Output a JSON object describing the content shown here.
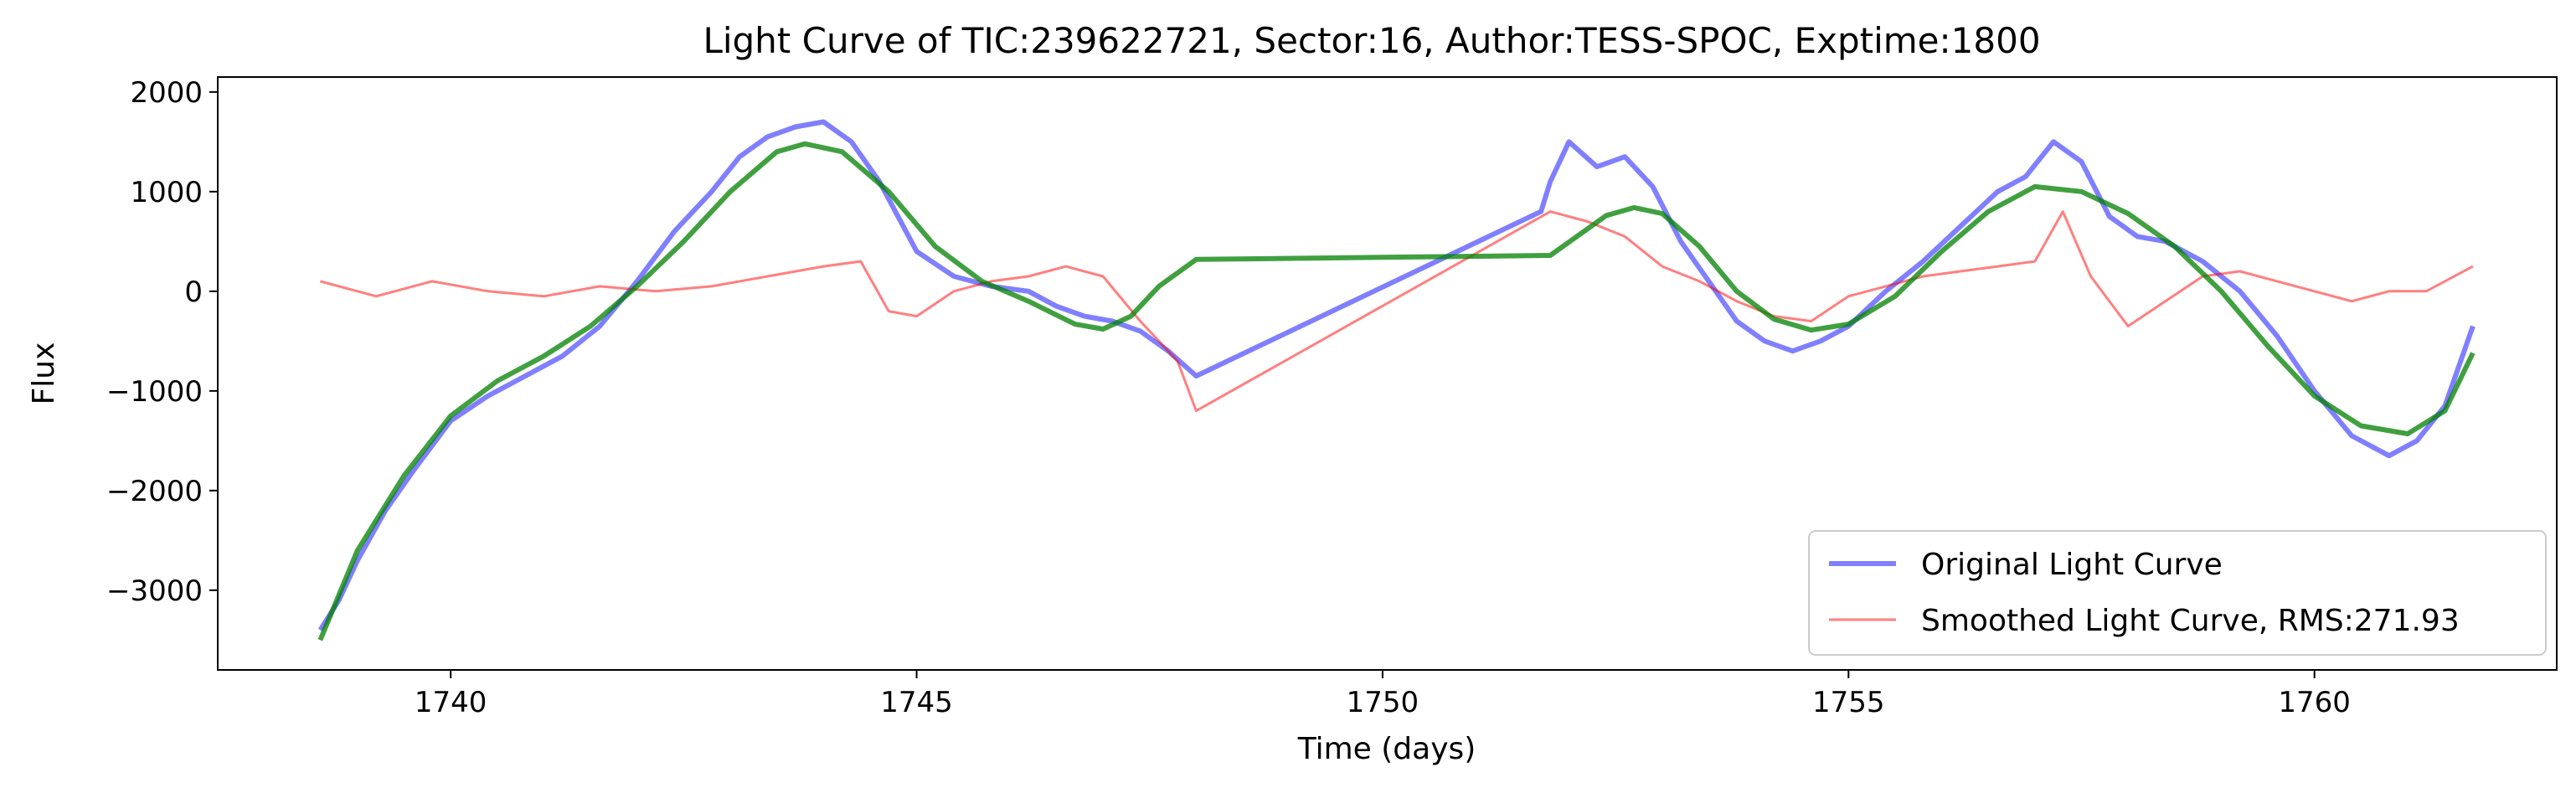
{
  "chart_data": {
    "type": "line",
    "title": "Light Curve of TIC:239622721, Sector:16, Author:TESS-SPOC, Exptime:1800",
    "xlabel": "Time (days)",
    "ylabel": "Flux",
    "xlim": [
      1737.5,
      1762.6
    ],
    "ylim": [
      -3800,
      2150
    ],
    "xticks": [
      1740,
      1745,
      1750,
      1755,
      1760
    ],
    "yticks": [
      -3000,
      -2000,
      -1000,
      0,
      1000,
      2000
    ],
    "grid": false,
    "legend": "lower-right",
    "series": [
      {
        "name": "Original Light Curve",
        "color": "#0000ff",
        "opacity": 0.5,
        "x": [
          1738.6,
          1738.8,
          1739.0,
          1739.3,
          1739.6,
          1740.0,
          1740.4,
          1740.8,
          1741.2,
          1741.6,
          1742.0,
          1742.4,
          1742.8,
          1743.1,
          1743.4,
          1743.7,
          1744.0,
          1744.3,
          1744.6,
          1745.0,
          1745.4,
          1745.8,
          1746.2,
          1746.5,
          1746.8,
          1747.1,
          1747.4,
          1747.7,
          1748.0,
          1751.7,
          1751.8,
          1752.0,
          1752.3,
          1752.6,
          1752.9,
          1753.2,
          1753.5,
          1753.8,
          1754.1,
          1754.4,
          1754.7,
          1755.0,
          1755.4,
          1755.8,
          1756.2,
          1756.6,
          1756.9,
          1757.2,
          1757.5,
          1757.8,
          1758.1,
          1758.4,
          1758.8,
          1759.2,
          1759.6,
          1760.0,
          1760.4,
          1760.8,
          1761.1,
          1761.4,
          1761.7
        ],
        "y": [
          -3400,
          -3100,
          -2700,
          -2200,
          -1800,
          -1300,
          -1050,
          -850,
          -650,
          -350,
          100,
          600,
          1000,
          1350,
          1550,
          1650,
          1700,
          1500,
          1100,
          400,
          150,
          50,
          0,
          -150,
          -250,
          -300,
          -400,
          -600,
          -850,
          800,
          1100,
          1500,
          1250,
          1350,
          1050,
          500,
          100,
          -300,
          -500,
          -600,
          -500,
          -350,
          0,
          300,
          650,
          1000,
          1150,
          1500,
          1300,
          750,
          550,
          500,
          300,
          0,
          -450,
          -1000,
          -1450,
          -1650,
          -1500,
          -1150,
          -350
        ]
      },
      {
        "name": "Smoothed Light Curve, RMS:271.93",
        "color": "#ff0000",
        "opacity": 0.5,
        "x": [
          1738.6,
          1739.2,
          1739.8,
          1740.4,
          1741.0,
          1741.6,
          1742.2,
          1742.8,
          1743.4,
          1744.0,
          1744.4,
          1744.7,
          1745.0,
          1745.4,
          1745.8,
          1746.2,
          1746.6,
          1747.0,
          1747.4,
          1747.8,
          1748.0,
          1751.8,
          1752.2,
          1752.6,
          1753.0,
          1753.4,
          1753.8,
          1754.2,
          1754.6,
          1755.0,
          1755.4,
          1755.8,
          1756.2,
          1756.6,
          1757.0,
          1757.3,
          1757.6,
          1758.0,
          1758.4,
          1758.8,
          1759.2,
          1759.6,
          1760.0,
          1760.4,
          1760.8,
          1761.2,
          1761.7
        ],
        "y": [
          100,
          -50,
          100,
          0,
          -50,
          50,
          0,
          50,
          150,
          250,
          300,
          -200,
          -250,
          0,
          100,
          150,
          250,
          150,
          -300,
          -700,
          -1200,
          800,
          700,
          550,
          250,
          100,
          -100,
          -250,
          -300,
          -50,
          50,
          150,
          200,
          250,
          300,
          800,
          150,
          -350,
          -100,
          150,
          200,
          100,
          0,
          -100,
          0,
          0,
          250
        ]
      },
      {
        "name": "",
        "color": "#008000",
        "opacity": 0.75,
        "x": [
          1738.6,
          1739.0,
          1739.5,
          1740.0,
          1740.5,
          1741.0,
          1741.5,
          1742.0,
          1742.5,
          1743.0,
          1743.5,
          1743.8,
          1744.2,
          1744.7,
          1745.2,
          1745.7,
          1746.2,
          1746.7,
          1747.0,
          1747.3,
          1747.6,
          1748.0,
          1751.8,
          1752.1,
          1752.4,
          1752.7,
          1753.0,
          1753.4,
          1753.8,
          1754.2,
          1754.6,
          1755.0,
          1755.5,
          1756.0,
          1756.5,
          1757.0,
          1757.5,
          1758.0,
          1758.5,
          1759.0,
          1759.5,
          1760.0,
          1760.5,
          1761.0,
          1761.4,
          1761.7
        ],
        "y": [
          -3500,
          -2600,
          -1850,
          -1250,
          -900,
          -650,
          -350,
          50,
          500,
          1000,
          1400,
          1480,
          1400,
          1000,
          450,
          100,
          -100,
          -330,
          -380,
          -250,
          50,
          320,
          360,
          560,
          760,
          840,
          780,
          450,
          0,
          -280,
          -390,
          -330,
          -50,
          400,
          800,
          1050,
          1000,
          780,
          450,
          0,
          -550,
          -1050,
          -1350,
          -1430,
          -1200,
          -620
        ]
      }
    ]
  }
}
